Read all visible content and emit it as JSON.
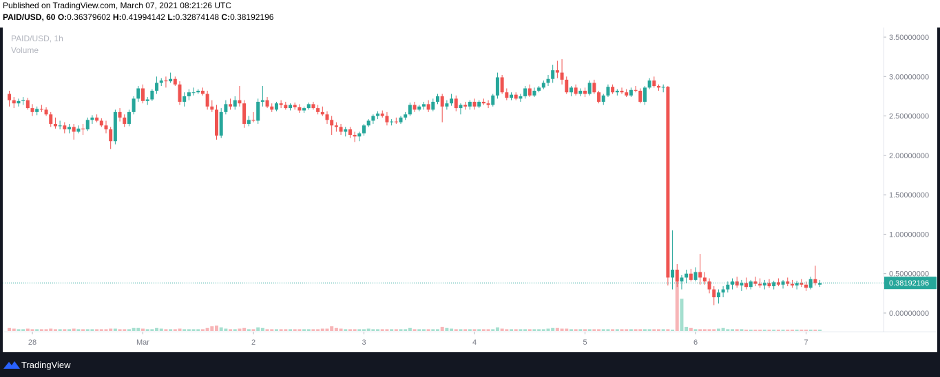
{
  "header": {
    "published": "Published on TradingView.com, March 07, 2021 08:21:26 UTC",
    "symbol": "PAID/USD, 60",
    "o_label": "O:",
    "o_value": "0.36379602",
    "h_label": "H:",
    "h_value": "0.41994142",
    "l_label": "L:",
    "l_value": "0.32874148",
    "c_label": "C:",
    "c_value": "0.38192196"
  },
  "legend": {
    "title": "PAID/USD, 1h",
    "volume": "Volume"
  },
  "footer": {
    "brand": "TradingView"
  },
  "colors": {
    "up": "#26a69a",
    "down": "#ef5350",
    "up_vol": "#a5dfcf",
    "down_vol": "#f7b5b7",
    "last_price": "#26a69a"
  },
  "chart_data": {
    "type": "candlestick",
    "symbol": "PAID/USD",
    "interval": "1h",
    "ylim": [
      -0.25,
      3.6
    ],
    "y_ticks": [
      "3.50000000",
      "3.00000000",
      "2.50000000",
      "2.00000000",
      "1.50000000",
      "1.00000000",
      "0.50000000",
      "0.00000000"
    ],
    "y_tick_values": [
      3.5,
      3.0,
      2.5,
      2.0,
      1.5,
      1.0,
      0.5,
      0.0
    ],
    "x_ticks": [
      "28",
      "Mar",
      "2",
      "3",
      "4",
      "5",
      "6",
      "7"
    ],
    "x_tick_hours": [
      0,
      24,
      48,
      72,
      96,
      120,
      144,
      168
    ],
    "start_hour": -5,
    "last_price": 0.38192196,
    "last_price_label": "0.38192196",
    "candles": [
      [
        2.78,
        2.82,
        2.62,
        2.7
      ],
      [
        2.7,
        2.74,
        2.6,
        2.66
      ],
      [
        2.66,
        2.72,
        2.62,
        2.69
      ],
      [
        2.69,
        2.74,
        2.64,
        2.7
      ],
      [
        2.7,
        2.73,
        2.58,
        2.6
      ],
      [
        2.6,
        2.65,
        2.5,
        2.55
      ],
      [
        2.55,
        2.62,
        2.51,
        2.59
      ],
      [
        2.59,
        2.64,
        2.55,
        2.58
      ],
      [
        2.58,
        2.61,
        2.5,
        2.52
      ],
      [
        2.52,
        2.55,
        2.36,
        2.4
      ],
      [
        2.4,
        2.48,
        2.34,
        2.37
      ],
      [
        2.37,
        2.44,
        2.33,
        2.38
      ],
      [
        2.38,
        2.42,
        2.28,
        2.33
      ],
      [
        2.33,
        2.4,
        2.28,
        2.36
      ],
      [
        2.36,
        2.4,
        2.2,
        2.3
      ],
      [
        2.3,
        2.38,
        2.28,
        2.34
      ],
      [
        2.34,
        2.4,
        2.26,
        2.33
      ],
      [
        2.33,
        2.48,
        2.31,
        2.45
      ],
      [
        2.45,
        2.51,
        2.4,
        2.48
      ],
      [
        2.48,
        2.52,
        2.42,
        2.44
      ],
      [
        2.44,
        2.47,
        2.36,
        2.38
      ],
      [
        2.38,
        2.44,
        2.28,
        2.33
      ],
      [
        2.33,
        2.36,
        2.08,
        2.18
      ],
      [
        2.18,
        2.58,
        2.14,
        2.55
      ],
      [
        2.55,
        2.6,
        2.43,
        2.48
      ],
      [
        2.48,
        2.52,
        2.36,
        2.4
      ],
      [
        2.4,
        2.58,
        2.37,
        2.55
      ],
      [
        2.55,
        2.75,
        2.52,
        2.72
      ],
      [
        2.72,
        2.88,
        2.68,
        2.85
      ],
      [
        2.85,
        2.9,
        2.66,
        2.69
      ],
      [
        2.69,
        2.74,
        2.64,
        2.71
      ],
      [
        2.71,
        2.84,
        2.69,
        2.82
      ],
      [
        2.82,
        3.0,
        2.78,
        2.92
      ],
      [
        2.92,
        2.98,
        2.88,
        2.95
      ],
      [
        2.95,
        3.0,
        2.86,
        2.94
      ],
      [
        2.94,
        3.05,
        2.92,
        2.97
      ],
      [
        2.97,
        3.0,
        2.88,
        2.9
      ],
      [
        2.9,
        2.94,
        2.64,
        2.68
      ],
      [
        2.68,
        2.8,
        2.62,
        2.75
      ],
      [
        2.75,
        2.84,
        2.7,
        2.8
      ],
      [
        2.8,
        2.86,
        2.76,
        2.8
      ],
      [
        2.8,
        2.84,
        2.78,
        2.82
      ],
      [
        2.82,
        2.86,
        2.76,
        2.78
      ],
      [
        2.78,
        2.82,
        2.58,
        2.62
      ],
      [
        2.62,
        2.7,
        2.55,
        2.58
      ],
      [
        2.58,
        2.64,
        2.2,
        2.25
      ],
      [
        2.25,
        2.6,
        2.22,
        2.55
      ],
      [
        2.55,
        2.7,
        2.52,
        2.65
      ],
      [
        2.65,
        2.72,
        2.58,
        2.62
      ],
      [
        2.62,
        2.75,
        2.58,
        2.7
      ],
      [
        2.7,
        2.88,
        2.62,
        2.66
      ],
      [
        2.66,
        2.7,
        2.35,
        2.4
      ],
      [
        2.4,
        2.5,
        2.37,
        2.45
      ],
      [
        2.45,
        2.55,
        2.42,
        2.44
      ],
      [
        2.44,
        2.72,
        2.4,
        2.68
      ],
      [
        2.68,
        2.88,
        2.62,
        2.7
      ],
      [
        2.7,
        2.74,
        2.6,
        2.62
      ],
      [
        2.62,
        2.66,
        2.55,
        2.58
      ],
      [
        2.58,
        2.68,
        2.56,
        2.66
      ],
      [
        2.66,
        2.7,
        2.6,
        2.64
      ],
      [
        2.64,
        2.68,
        2.58,
        2.6
      ],
      [
        2.6,
        2.66,
        2.57,
        2.64
      ],
      [
        2.64,
        2.67,
        2.58,
        2.61
      ],
      [
        2.61,
        2.65,
        2.54,
        2.57
      ],
      [
        2.57,
        2.62,
        2.54,
        2.6
      ],
      [
        2.6,
        2.67,
        2.58,
        2.65
      ],
      [
        2.65,
        2.68,
        2.58,
        2.6
      ],
      [
        2.6,
        2.64,
        2.52,
        2.55
      ],
      [
        2.55,
        2.62,
        2.5,
        2.52
      ],
      [
        2.52,
        2.56,
        2.4,
        2.45
      ],
      [
        2.45,
        2.5,
        2.26,
        2.38
      ],
      [
        2.38,
        2.42,
        2.3,
        2.36
      ],
      [
        2.36,
        2.4,
        2.26,
        2.3
      ],
      [
        2.3,
        2.36,
        2.24,
        2.33
      ],
      [
        2.33,
        2.36,
        2.22,
        2.26
      ],
      [
        2.26,
        2.3,
        2.17,
        2.24
      ],
      [
        2.24,
        2.3,
        2.18,
        2.28
      ],
      [
        2.28,
        2.4,
        2.25,
        2.38
      ],
      [
        2.38,
        2.46,
        2.36,
        2.44
      ],
      [
        2.44,
        2.52,
        2.4,
        2.5
      ],
      [
        2.5,
        2.56,
        2.46,
        2.53
      ],
      [
        2.53,
        2.57,
        2.48,
        2.5
      ],
      [
        2.5,
        2.55,
        2.38,
        2.42
      ],
      [
        2.42,
        2.46,
        2.38,
        2.43
      ],
      [
        2.43,
        2.48,
        2.4,
        2.42
      ],
      [
        2.42,
        2.5,
        2.4,
        2.48
      ],
      [
        2.48,
        2.55,
        2.45,
        2.52
      ],
      [
        2.52,
        2.67,
        2.5,
        2.64
      ],
      [
        2.64,
        2.68,
        2.55,
        2.58
      ],
      [
        2.58,
        2.64,
        2.56,
        2.62
      ],
      [
        2.62,
        2.68,
        2.58,
        2.65
      ],
      [
        2.65,
        2.7,
        2.55,
        2.58
      ],
      [
        2.58,
        2.72,
        2.56,
        2.68
      ],
      [
        2.68,
        2.78,
        2.65,
        2.75
      ],
      [
        2.75,
        2.78,
        2.42,
        2.62
      ],
      [
        2.62,
        2.7,
        2.58,
        2.66
      ],
      [
        2.66,
        2.78,
        2.63,
        2.72
      ],
      [
        2.72,
        2.76,
        2.56,
        2.6
      ],
      [
        2.6,
        2.66,
        2.52,
        2.64
      ],
      [
        2.64,
        2.68,
        2.58,
        2.62
      ],
      [
        2.62,
        2.7,
        2.58,
        2.68
      ],
      [
        2.68,
        2.72,
        2.58,
        2.62
      ],
      [
        2.62,
        2.7,
        2.6,
        2.68
      ],
      [
        2.68,
        2.72,
        2.64,
        2.66
      ],
      [
        2.66,
        2.7,
        2.6,
        2.64
      ],
      [
        2.64,
        2.78,
        2.62,
        2.76
      ],
      [
        2.76,
        3.05,
        2.72,
        2.99
      ],
      [
        2.99,
        3.02,
        2.78,
        2.8
      ],
      [
        2.8,
        2.85,
        2.7,
        2.73
      ],
      [
        2.73,
        2.8,
        2.7,
        2.77
      ],
      [
        2.77,
        2.8,
        2.7,
        2.72
      ],
      [
        2.72,
        2.78,
        2.68,
        2.75
      ],
      [
        2.75,
        2.88,
        2.72,
        2.85
      ],
      [
        2.85,
        2.9,
        2.74,
        2.76
      ],
      [
        2.76,
        2.86,
        2.74,
        2.82
      ],
      [
        2.82,
        2.88,
        2.8,
        2.86
      ],
      [
        2.86,
        2.95,
        2.84,
        2.92
      ],
      [
        2.92,
        3.02,
        2.88,
        2.97
      ],
      [
        2.97,
        3.15,
        2.92,
        3.08
      ],
      [
        3.08,
        3.2,
        2.98,
        3.05
      ],
      [
        3.05,
        3.22,
        2.9,
        2.96
      ],
      [
        2.96,
        3.0,
        2.78,
        2.8
      ],
      [
        2.8,
        2.88,
        2.75,
        2.86
      ],
      [
        2.86,
        2.9,
        2.76,
        2.78
      ],
      [
        2.78,
        2.85,
        2.75,
        2.82
      ],
      [
        2.82,
        2.86,
        2.74,
        2.78
      ],
      [
        2.78,
        2.95,
        2.76,
        2.92
      ],
      [
        2.92,
        2.96,
        2.78,
        2.8
      ],
      [
        2.8,
        2.82,
        2.66,
        2.68
      ],
      [
        2.68,
        2.78,
        2.64,
        2.76
      ],
      [
        2.76,
        2.9,
        2.74,
        2.87
      ],
      [
        2.87,
        2.9,
        2.78,
        2.8
      ],
      [
        2.8,
        2.84,
        2.76,
        2.82
      ],
      [
        2.82,
        2.86,
        2.78,
        2.8
      ],
      [
        2.8,
        2.84,
        2.74,
        2.76
      ],
      [
        2.76,
        2.86,
        2.74,
        2.83
      ],
      [
        2.83,
        2.88,
        2.8,
        2.82
      ],
      [
        2.82,
        2.85,
        2.66,
        2.68
      ],
      [
        2.68,
        2.88,
        2.64,
        2.86
      ],
      [
        2.86,
        2.98,
        2.84,
        2.95
      ],
      [
        2.95,
        3.0,
        2.86,
        2.88
      ],
      [
        2.88,
        2.9,
        2.82,
        2.86
      ],
      [
        2.86,
        2.9,
        2.8,
        2.87
      ],
      [
        2.87,
        2.88,
        0.35,
        0.45
      ],
      [
        0.45,
        1.05,
        0.3,
        0.55
      ],
      [
        0.55,
        0.62,
        0.33,
        0.4
      ],
      [
        0.4,
        0.48,
        0.3,
        0.45
      ],
      [
        0.45,
        0.55,
        0.38,
        0.5
      ],
      [
        0.5,
        0.56,
        0.4,
        0.42
      ],
      [
        0.42,
        0.58,
        0.4,
        0.52
      ],
      [
        0.52,
        0.75,
        0.36,
        0.45
      ],
      [
        0.45,
        0.52,
        0.36,
        0.4
      ],
      [
        0.4,
        0.44,
        0.25,
        0.3
      ],
      [
        0.3,
        0.34,
        0.1,
        0.2
      ],
      [
        0.2,
        0.3,
        0.12,
        0.26
      ],
      [
        0.26,
        0.34,
        0.2,
        0.3
      ],
      [
        0.3,
        0.4,
        0.26,
        0.36
      ],
      [
        0.36,
        0.44,
        0.3,
        0.4
      ],
      [
        0.4,
        0.46,
        0.32,
        0.35
      ],
      [
        0.35,
        0.42,
        0.28,
        0.38
      ],
      [
        0.38,
        0.45,
        0.3,
        0.33
      ],
      [
        0.33,
        0.42,
        0.3,
        0.4
      ],
      [
        0.4,
        0.46,
        0.34,
        0.37
      ],
      [
        0.37,
        0.44,
        0.32,
        0.35
      ],
      [
        0.35,
        0.42,
        0.3,
        0.38
      ],
      [
        0.38,
        0.43,
        0.32,
        0.34
      ],
      [
        0.34,
        0.41,
        0.3,
        0.39
      ],
      [
        0.39,
        0.44,
        0.34,
        0.36
      ],
      [
        0.36,
        0.42,
        0.31,
        0.4
      ],
      [
        0.4,
        0.45,
        0.34,
        0.37
      ],
      [
        0.37,
        0.42,
        0.32,
        0.35
      ],
      [
        0.35,
        0.41,
        0.3,
        0.38
      ],
      [
        0.38,
        0.43,
        0.33,
        0.36
      ],
      [
        0.36,
        0.4,
        0.28,
        0.32
      ],
      [
        0.32,
        0.46,
        0.3,
        0.43
      ],
      [
        0.43,
        0.6,
        0.35,
        0.38
      ],
      [
        0.36,
        0.42,
        0.33,
        0.38
      ]
    ],
    "volumes": [
      0.05,
      0.04,
      0.03,
      0.03,
      0.04,
      0.03,
      0.03,
      0.03,
      0.03,
      0.04,
      0.03,
      0.03,
      0.03,
      0.03,
      0.04,
      0.03,
      0.03,
      0.03,
      0.03,
      0.03,
      0.03,
      0.03,
      0.04,
      0.04,
      0.03,
      0.03,
      0.03,
      0.05,
      0.05,
      0.04,
      0.03,
      0.03,
      0.05,
      0.04,
      0.03,
      0.03,
      0.03,
      0.04,
      0.03,
      0.03,
      0.03,
      0.03,
      0.03,
      0.05,
      0.08,
      0.09,
      0.06,
      0.04,
      0.03,
      0.03,
      0.04,
      0.05,
      0.03,
      0.03,
      0.06,
      0.05,
      0.03,
      0.03,
      0.03,
      0.03,
      0.03,
      0.03,
      0.03,
      0.03,
      0.03,
      0.03,
      0.03,
      0.03,
      0.04,
      0.04,
      0.08,
      0.05,
      0.04,
      0.03,
      0.03,
      0.03,
      0.03,
      0.03,
      0.04,
      0.03,
      0.03,
      0.03,
      0.03,
      0.03,
      0.03,
      0.03,
      0.03,
      0.05,
      0.03,
      0.03,
      0.03,
      0.03,
      0.03,
      0.03,
      0.07,
      0.05,
      0.04,
      0.03,
      0.03,
      0.03,
      0.03,
      0.03,
      0.03,
      0.03,
      0.03,
      0.03,
      0.06,
      0.04,
      0.03,
      0.03,
      0.03,
      0.03,
      0.03,
      0.03,
      0.03,
      0.03,
      0.03,
      0.04,
      0.05,
      0.05,
      0.04,
      0.04,
      0.03,
      0.03,
      0.03,
      0.03,
      0.03,
      0.03,
      0.03,
      0.03,
      0.03,
      0.03,
      0.03,
      0.03,
      0.03,
      0.03,
      0.03,
      0.03,
      0.03,
      0.03,
      0.03,
      0.03,
      0.03,
      0.03,
      0.02,
      0.85,
      0.55,
      0.07,
      0.05,
      0.03,
      0.03,
      0.03,
      0.03,
      0.03,
      0.04,
      0.05,
      0.03,
      0.03,
      0.03,
      0.03,
      0.02,
      0.02,
      0.02,
      0.02,
      0.02,
      0.02,
      0.02,
      0.02,
      0.02,
      0.02,
      0.02,
      0.02,
      0.02,
      0.02,
      0.02,
      0.02,
      0.02,
      0.02,
      0.02,
      0.02
    ]
  }
}
